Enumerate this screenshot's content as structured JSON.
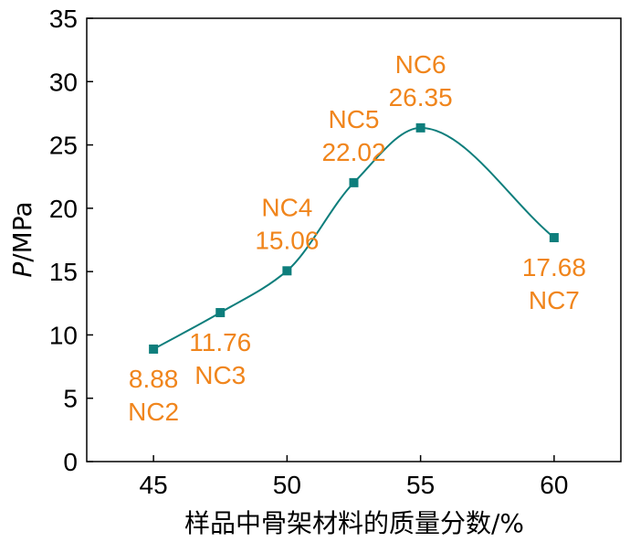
{
  "chart_data": {
    "type": "line",
    "title": "",
    "xlabel": "样品中骨架材料的质量分数/%",
    "ylabel_italic": "P",
    "ylabel_rest": "/MPa",
    "xlim": [
      42.5,
      62.5
    ],
    "ylim": [
      0,
      35
    ],
    "xticks": [
      45,
      50,
      55,
      60
    ],
    "yticks": [
      0,
      5,
      10,
      15,
      20,
      25,
      30,
      35
    ],
    "grid": false,
    "legend": "none",
    "series": [
      {
        "x": [
          45,
          47.5,
          50,
          52.5,
          55,
          60
        ],
        "y": [
          8.88,
          11.76,
          15.06,
          22.02,
          26.35,
          17.68
        ],
        "color": "#0e7e7c",
        "marker": "square"
      }
    ],
    "annotations": [
      {
        "name": "NC2",
        "value": "8.88",
        "x": 45,
        "y": 8.88,
        "position": "below"
      },
      {
        "name": "NC3",
        "value": "11.76",
        "x": 47.5,
        "y": 11.76,
        "position": "below"
      },
      {
        "name": "NC4",
        "value": "15.06",
        "x": 50,
        "y": 15.06,
        "position": "above"
      },
      {
        "name": "NC5",
        "value": "22.02",
        "x": 52.5,
        "y": 22.02,
        "position": "above"
      },
      {
        "name": "NC6",
        "value": "26.35",
        "x": 55,
        "y": 26.35,
        "position": "above"
      },
      {
        "name": "NC7",
        "value": "17.68",
        "x": 60,
        "y": 17.68,
        "position": "below"
      }
    ],
    "label_color": "#f0851c"
  }
}
